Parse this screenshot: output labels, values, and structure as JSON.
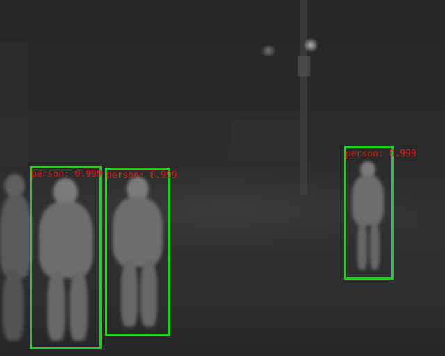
{
  "image": {
    "description_colors": {
      "background": "#2a2a2a",
      "box_color": "#1fd11f",
      "label_color": "#e01818"
    }
  },
  "detections": [
    {
      "label": "person: 0.999"
    },
    {
      "label": "person: 0.999"
    },
    {
      "label": "person: 0.999"
    }
  ]
}
